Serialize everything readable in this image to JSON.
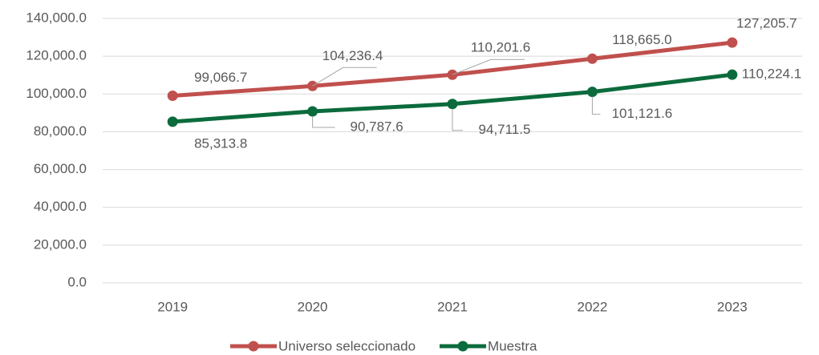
{
  "chart_data": {
    "type": "line",
    "categories": [
      "2019",
      "2020",
      "2021",
      "2022",
      "2023"
    ],
    "series": [
      {
        "name": "Universo seleccionado",
        "color": "#c0504d",
        "values": [
          99066.7,
          104236.4,
          110201.6,
          118665.0,
          127205.7
        ],
        "value_labels": [
          "99,066.7",
          "104,236.4",
          "110,201.6",
          "118,665.0",
          "127,205.7"
        ]
      },
      {
        "name": "Muestra",
        "color": "#0b6b3c",
        "values": [
          85313.8,
          90787.6,
          94711.5,
          101121.6,
          110224.1
        ],
        "value_labels": [
          "85,313.8",
          "90,787.6",
          "94,711.5",
          "101,121.6",
          "110,224.1"
        ]
      }
    ],
    "ylim": [
      0,
      140000
    ],
    "yticks": [
      {
        "value": 0,
        "label": "0.0"
      },
      {
        "value": 20000,
        "label": "20,000.0"
      },
      {
        "value": 40000,
        "label": "40,000.0"
      },
      {
        "value": 60000,
        "label": "60,000.0"
      },
      {
        "value": 80000,
        "label": "80,000.0"
      },
      {
        "value": 100000,
        "label": "100,000.0"
      },
      {
        "value": 120000,
        "label": "120,000.0"
      },
      {
        "value": 140000,
        "label": "140,000.0"
      }
    ],
    "grid": true,
    "legend": "bottom"
  }
}
